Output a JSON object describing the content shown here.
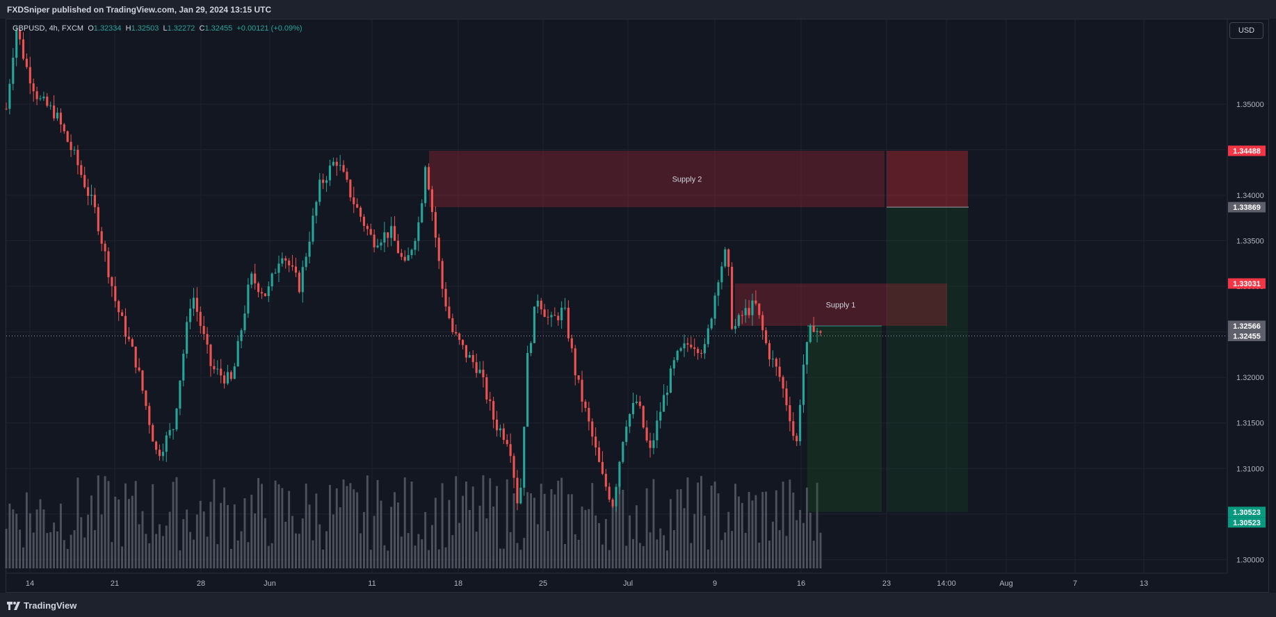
{
  "header": {
    "publish_text": "FXDSniper published on TradingView.com, Jan 29, 2024 13:15 UTC"
  },
  "footer": {
    "logo_text": "TradingView"
  },
  "legend": {
    "symbol": "GBPUSD, 4h, FXCM",
    "open_label": "O",
    "open": "1.32334",
    "high_label": "H",
    "high": "1.32503",
    "low_label": "L",
    "low": "1.32272",
    "close_label": "C",
    "close": "1.32455",
    "change": "+0.00121 (+0.09%)"
  },
  "currency_button": "USD",
  "colors": {
    "background": "#131722",
    "up": "#26a69a",
    "down": "#ef5350",
    "volume": "#5d606b",
    "supply_zone": "#b22833",
    "target_zone": "#1b5e20",
    "badge_red": "#f23645",
    "badge_green": "#089981",
    "badge_grey": "#5d606b"
  },
  "chart_data": {
    "type": "candlestick",
    "title": "",
    "ylim": [
      1.2985,
      1.3593
    ],
    "y_ticks": [
      "1.35000",
      "1.34500",
      "1.34000",
      "1.33500",
      "1.33000",
      "1.32500",
      "1.32000",
      "1.31500",
      "1.31000",
      "1.30500",
      "1.30000"
    ],
    "x_ticks": [
      "14",
      "21",
      "28",
      "Jun",
      "11",
      "18",
      "25",
      "Jul",
      "9",
      "16",
      "23",
      "14:00",
      "Aug",
      "7",
      "13"
    ],
    "grid": true,
    "price_path": [
      [
        0,
        1.3495
      ],
      [
        12,
        1.3585
      ],
      [
        25,
        1.354
      ],
      [
        40,
        1.3505
      ],
      [
        60,
        1.349
      ],
      [
        85,
        1.344
      ],
      [
        110,
        1.338
      ],
      [
        135,
        1.328
      ],
      [
        160,
        1.3215
      ],
      [
        185,
        1.3115
      ],
      [
        205,
        1.3145
      ],
      [
        228,
        1.3295
      ],
      [
        252,
        1.321
      ],
      [
        277,
        1.3195
      ],
      [
        300,
        1.331
      ],
      [
        320,
        1.329
      ],
      [
        338,
        1.334
      ],
      [
        360,
        1.33
      ],
      [
        385,
        1.341
      ],
      [
        405,
        1.344
      ],
      [
        428,
        1.339
      ],
      [
        450,
        1.335
      ],
      [
        472,
        1.336
      ],
      [
        490,
        1.332
      ],
      [
        508,
        1.3375
      ],
      [
        515,
        1.344
      ],
      [
        522,
        1.339
      ],
      [
        535,
        1.33
      ],
      [
        548,
        1.325
      ],
      [
        565,
        1.3225
      ],
      [
        580,
        1.321
      ],
      [
        600,
        1.315
      ],
      [
        618,
        1.313
      ],
      [
        630,
        1.305
      ],
      [
        640,
        1.322
      ],
      [
        652,
        1.329
      ],
      [
        668,
        1.326
      ],
      [
        685,
        1.3275
      ],
      [
        700,
        1.32
      ],
      [
        718,
        1.314
      ],
      [
        732,
        1.309
      ],
      [
        745,
        1.3062
      ],
      [
        760,
        1.315
      ],
      [
        775,
        1.3175
      ],
      [
        790,
        1.3115
      ],
      [
        805,
        1.317
      ],
      [
        822,
        1.322
      ],
      [
        840,
        1.324
      ],
      [
        858,
        1.323
      ],
      [
        875,
        1.3315
      ],
      [
        885,
        1.334
      ],
      [
        892,
        1.325
      ],
      [
        905,
        1.327
      ],
      [
        920,
        1.328
      ],
      [
        935,
        1.323
      ],
      [
        950,
        1.32
      ],
      [
        962,
        1.316
      ],
      [
        970,
        1.312
      ],
      [
        978,
        1.321
      ],
      [
        990,
        1.326
      ],
      [
        1000,
        1.3245
      ]
    ],
    "candle_count": 240,
    "volume_bar_count": 240,
    "zones": [
      {
        "label": "Supply 2",
        "top": 1.34488,
        "bottom": 1.33869
      },
      {
        "label": "Supply 1",
        "top": 1.33031,
        "bottom": 1.32566
      },
      {
        "label": "",
        "kind": "target",
        "top": 1.32566,
        "bottom": 1.30523
      },
      {
        "label": "",
        "kind": "target",
        "top": 1.33869,
        "bottom": 1.30523
      }
    ],
    "current_price": 1.32455,
    "price_badges": [
      {
        "text": "1.34488",
        "value": 1.34488,
        "color": "red"
      },
      {
        "text": "1.33869",
        "value": 1.33869,
        "color": "grey"
      },
      {
        "text": "1.33031",
        "value": 1.33031,
        "color": "red"
      },
      {
        "text": "1.32566",
        "value": 1.32566,
        "color": "grey"
      },
      {
        "text": "1.32455",
        "value": 1.32455,
        "color": "grey"
      },
      {
        "text": "1.30523",
        "value": 1.30523,
        "color": "green"
      },
      {
        "text": "1.30523",
        "value": 1.30523,
        "color": "green"
      }
    ]
  }
}
